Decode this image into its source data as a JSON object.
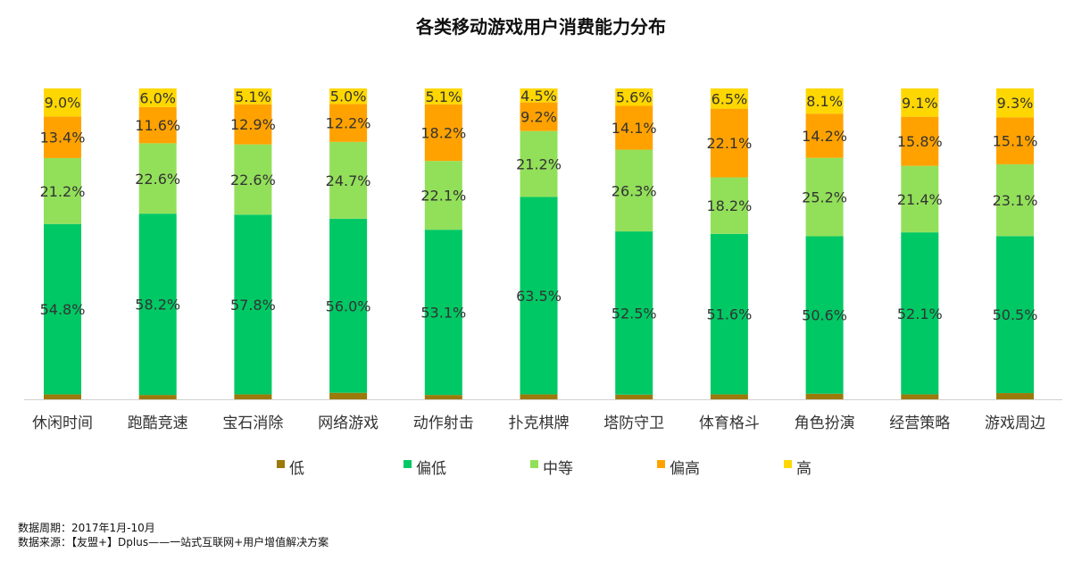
{
  "chart_data": {
    "type": "bar",
    "stacked": true,
    "title": "各类移动游戏用户消费能力分布",
    "categories": [
      "休闲时间",
      "跑酷竞速",
      "宝石消除",
      "网络游戏",
      "动作射击",
      "扑克棋牌",
      "塔防守卫",
      "体育格斗",
      "角色扮演",
      "经营策略",
      "游戏周边"
    ],
    "series": [
      {
        "name": "低",
        "color": "#9B7A0B",
        "values": [
          1.6,
          1.4,
          1.6,
          2.1,
          1.4,
          1.6,
          1.5,
          1.6,
          1.8,
          1.6,
          2.0
        ],
        "labels": [
          "",
          "",
          "",
          "",
          "",
          "",
          "",
          "",
          "",
          "",
          ""
        ]
      },
      {
        "name": "偏低",
        "color": "#00C864",
        "values": [
          54.8,
          58.2,
          57.8,
          56.0,
          53.1,
          63.5,
          52.5,
          51.6,
          50.6,
          52.1,
          50.5
        ],
        "labels": [
          "54.8%",
          "58.2%",
          "57.8%",
          "56.0%",
          "53.1%",
          "63.5%",
          "52.5%",
          "51.6%",
          "50.6%",
          "52.1%",
          "50.5%"
        ]
      },
      {
        "name": "中等",
        "color": "#92E05A",
        "values": [
          21.2,
          22.6,
          22.6,
          24.7,
          22.1,
          21.2,
          26.3,
          18.2,
          25.2,
          21.4,
          23.1
        ],
        "labels": [
          "21.2%",
          "22.6%",
          "22.6%",
          "24.7%",
          "22.1%",
          "21.2%",
          "26.3%",
          "18.2%",
          "25.2%",
          "21.4%",
          "23.1%"
        ]
      },
      {
        "name": "偏高",
        "color": "#FFA200",
        "values": [
          13.4,
          11.6,
          12.9,
          12.2,
          18.2,
          9.2,
          14.1,
          22.1,
          14.2,
          15.8,
          15.1
        ],
        "labels": [
          "13.4%",
          "11.6%",
          "12.9%",
          "12.2%",
          "18.2%",
          "9.2%",
          "14.1%",
          "22.1%",
          "14.2%",
          "15.8%",
          "15.1%"
        ]
      },
      {
        "name": "高",
        "color": "#FFD700",
        "values": [
          9.0,
          6.0,
          5.1,
          5.0,
          5.1,
          4.5,
          5.6,
          6.5,
          8.1,
          9.1,
          9.3
        ],
        "labels": [
          "9.0%",
          "6.0%",
          "5.1%",
          "5.0%",
          "5.1%",
          "4.5%",
          "5.6%",
          "6.5%",
          "8.1%",
          "9.1%",
          "9.3%"
        ]
      }
    ],
    "ylim": [
      0,
      100
    ],
    "grid": false,
    "legend_position": "bottom"
  },
  "notes": {
    "period": "数据周期：2017年1月-10月",
    "source": "数据来源：【友盟+】Dplus——一站式互联网+用户增值解决方案"
  }
}
